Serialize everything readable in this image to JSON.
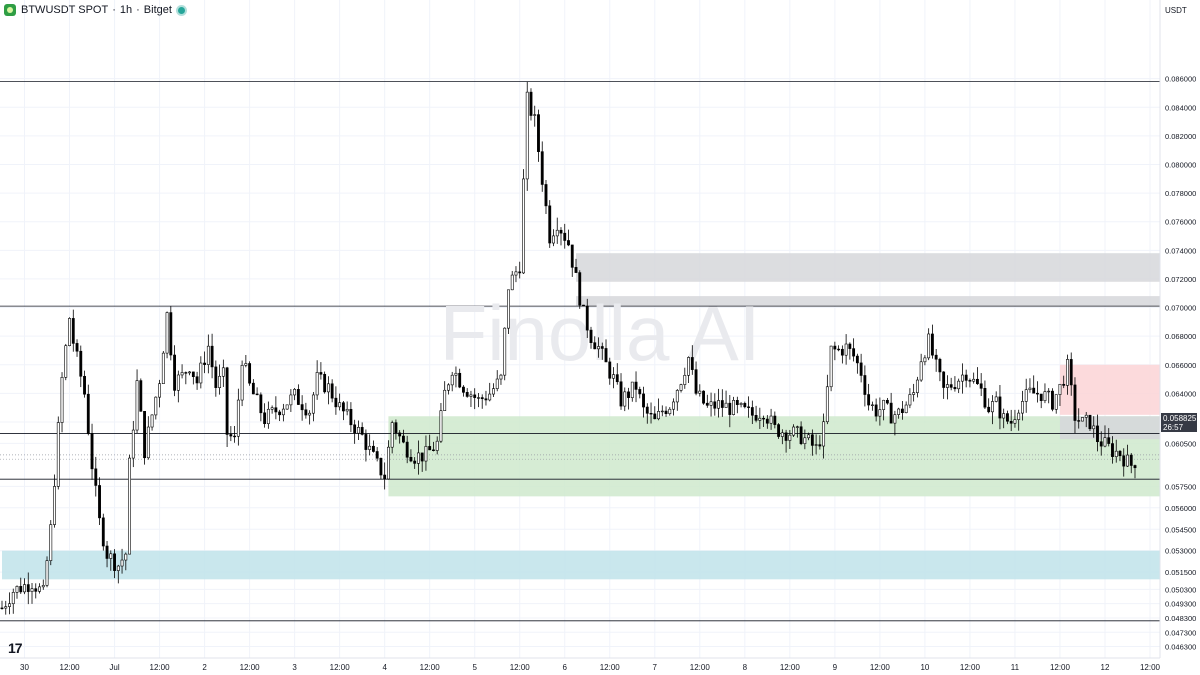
{
  "header": {
    "symbol": "BTWUSDT SPOT",
    "interval": "1h",
    "exchange": "Bitget",
    "separator": "·"
  },
  "currency_label": "USDT",
  "watermark": "Finolla AI",
  "logo_text": "17",
  "colors": {
    "up": "#ffffff",
    "down": "#000000",
    "wick": "#000000",
    "demand_zone": "#cfe9cc",
    "supply_zone": "#fbd4d6",
    "grey_zone": "#d6d7da",
    "blue_zone": "#bfe3ea",
    "grid": "#f0f3fa"
  },
  "last_price": {
    "value": "0.058825",
    "countdown": "26:57"
  },
  "chart_data": {
    "type": "candlestick",
    "title": "",
    "xlabel": "",
    "ylabel": "",
    "ylim": [
      0.0455,
      0.0915
    ],
    "xlim_bars": [
      0,
      306
    ],
    "y_ticks": [
      "0.086000",
      "0.084000",
      "0.082000",
      "0.080000",
      "0.078000",
      "0.076000",
      "0.074000",
      "0.072000",
      "0.070000",
      "0.068000",
      "0.066000",
      "0.064000",
      "0.062000",
      "0.060500",
      "0.057500",
      "0.056000",
      "0.054500",
      "0.053000",
      "0.051500",
      "0.050300",
      "0.049300",
      "0.048300",
      "0.047300",
      "0.046300"
    ],
    "x_ticks": [
      {
        "label": "30",
        "bar": 6
      },
      {
        "label": "12:00",
        "bar": 18
      },
      {
        "label": "Jul",
        "bar": 30
      },
      {
        "label": "12:00",
        "bar": 42
      },
      {
        "label": "2",
        "bar": 54
      },
      {
        "label": "12:00",
        "bar": 66
      },
      {
        "label": "3",
        "bar": 78
      },
      {
        "label": "12:00",
        "bar": 90
      },
      {
        "label": "4",
        "bar": 102
      },
      {
        "label": "12:00",
        "bar": 114
      },
      {
        "label": "5",
        "bar": 126
      },
      {
        "label": "12:00",
        "bar": 138
      },
      {
        "label": "6",
        "bar": 150
      },
      {
        "label": "12:00",
        "bar": 162
      },
      {
        "label": "7",
        "bar": 174
      },
      {
        "label": "12:00",
        "bar": 186
      },
      {
        "label": "8",
        "bar": 198
      },
      {
        "label": "12:00",
        "bar": 210
      },
      {
        "label": "9",
        "bar": 222
      },
      {
        "label": "12:00",
        "bar": 234
      },
      {
        "label": "10",
        "bar": 246
      },
      {
        "label": "12:00",
        "bar": 258
      },
      {
        "label": "11",
        "bar": 270
      },
      {
        "label": "12:00",
        "bar": 282
      },
      {
        "label": "12",
        "bar": 294
      },
      {
        "label": "12:00",
        "bar": 306
      }
    ],
    "horizontal_lines": [
      0.0858,
      0.0701,
      0.0612,
      0.058,
      0.0481
    ],
    "dotted_lines": [
      0.0597,
      0.0594
    ],
    "zones": [
      {
        "kind": "grey",
        "from_bar": 153,
        "to_bar": 310,
        "low": 0.0718,
        "high": 0.0738
      },
      {
        "kind": "grey",
        "from_bar": 153,
        "to_bar": 310,
        "low": 0.0701,
        "high": 0.0708
      },
      {
        "kind": "demand",
        "from_bar": 103,
        "to_bar": 310,
        "low": 0.0568,
        "high": 0.0624
      },
      {
        "kind": "supply",
        "from_bar": 282,
        "to_bar": 310,
        "low": 0.0625,
        "high": 0.066
      },
      {
        "kind": "grey",
        "from_bar": 282,
        "to_bar": 310,
        "low": 0.0608,
        "high": 0.0624
      },
      {
        "kind": "blue",
        "from_bar": 0,
        "to_bar": 310,
        "low": 0.051,
        "high": 0.053
      }
    ],
    "path_points": [
      [
        0,
        0.049
      ],
      [
        3,
        0.0502
      ],
      [
        8,
        0.0508
      ],
      [
        11,
        0.05
      ],
      [
        13,
        0.0545
      ],
      [
        16,
        0.065
      ],
      [
        18,
        0.0693
      ],
      [
        19,
        0.0676
      ],
      [
        22,
        0.064
      ],
      [
        24,
        0.059
      ],
      [
        26,
        0.055
      ],
      [
        28,
        0.0528
      ],
      [
        30,
        0.0522
      ],
      [
        31,
        0.052
      ],
      [
        33,
        0.0528
      ],
      [
        34,
        0.059
      ],
      [
        36,
        0.0647
      ],
      [
        38,
        0.06
      ],
      [
        40,
        0.0625
      ],
      [
        42,
        0.065
      ],
      [
        44,
        0.0695
      ],
      [
        46,
        0.0648
      ],
      [
        48,
        0.0652
      ],
      [
        50,
        0.066
      ],
      [
        52,
        0.0648
      ],
      [
        55,
        0.0673
      ],
      [
        57,
        0.0645
      ],
      [
        59,
        0.0652
      ],
      [
        60,
        0.0612
      ],
      [
        62,
        0.0607
      ],
      [
        64,
        0.0665
      ],
      [
        66,
        0.0645
      ],
      [
        70,
        0.0622
      ],
      [
        74,
        0.063
      ],
      [
        78,
        0.0638
      ],
      [
        82,
        0.0628
      ],
      [
        84,
        0.065
      ],
      [
        87,
        0.0644
      ],
      [
        90,
        0.063
      ],
      [
        93,
        0.062
      ],
      [
        96,
        0.061
      ],
      [
        98,
        0.06
      ],
      [
        100,
        0.059
      ],
      [
        102,
        0.0582
      ],
      [
        104,
        0.062
      ],
      [
        107,
        0.0604
      ],
      [
        110,
        0.0596
      ],
      [
        113,
        0.0597
      ],
      [
        116,
        0.0605
      ],
      [
        118,
        0.064
      ],
      [
        120,
        0.0658
      ],
      [
        123,
        0.0645
      ],
      [
        127,
        0.0635
      ],
      [
        130,
        0.064
      ],
      [
        133,
        0.065
      ],
      [
        135,
        0.0715
      ],
      [
        138,
        0.073
      ],
      [
        140,
        0.0845
      ],
      [
        142,
        0.083
      ],
      [
        144,
        0.079
      ],
      [
        146,
        0.075
      ],
      [
        148,
        0.076
      ],
      [
        151,
        0.0745
      ],
      [
        153,
        0.072
      ],
      [
        155,
        0.0695
      ],
      [
        157,
        0.068
      ],
      [
        159,
        0.0672
      ],
      [
        161,
        0.066
      ],
      [
        163,
        0.065
      ],
      [
        165,
        0.0635
      ],
      [
        167,
        0.064
      ],
      [
        169,
        0.0645
      ],
      [
        171,
        0.0628
      ],
      [
        174,
        0.062
      ],
      [
        176,
        0.0628
      ],
      [
        178,
        0.0632
      ],
      [
        181,
        0.065
      ],
      [
        183,
        0.0665
      ],
      [
        185,
        0.064
      ],
      [
        188,
        0.063
      ],
      [
        191,
        0.0632
      ],
      [
        194,
        0.063
      ],
      [
        197,
        0.0628
      ],
      [
        200,
        0.0625
      ],
      [
        203,
        0.0628
      ],
      [
        206,
        0.0615
      ],
      [
        209,
        0.0613
      ],
      [
        211,
        0.0612
      ],
      [
        213,
        0.061
      ],
      [
        215,
        0.0606
      ],
      [
        217,
        0.0601
      ],
      [
        219,
        0.0615
      ],
      [
        221,
        0.067
      ],
      [
        223,
        0.067
      ],
      [
        225,
        0.0672
      ],
      [
        227,
        0.0666
      ],
      [
        229,
        0.0655
      ],
      [
        231,
        0.0633
      ],
      [
        233,
        0.0628
      ],
      [
        235,
        0.063
      ],
      [
        237,
        0.0625
      ],
      [
        239,
        0.0626
      ],
      [
        241,
        0.0632
      ],
      [
        243,
        0.064
      ],
      [
        245,
        0.0665
      ],
      [
        247,
        0.0676
      ],
      [
        249,
        0.0658
      ],
      [
        251,
        0.0642
      ],
      [
        254,
        0.0648
      ],
      [
        257,
        0.0655
      ],
      [
        259,
        0.0648
      ],
      [
        261,
        0.0642
      ],
      [
        263,
        0.063
      ],
      [
        265,
        0.0633
      ],
      [
        267,
        0.0622
      ],
      [
        269,
        0.062
      ],
      [
        271,
        0.0632
      ],
      [
        274,
        0.064
      ],
      [
        277,
        0.064
      ],
      [
        280,
        0.0634
      ],
      [
        282,
        0.0644
      ],
      [
        284,
        0.0658
      ],
      [
        286,
        0.0624
      ],
      [
        288,
        0.0619
      ],
      [
        290,
        0.062
      ],
      [
        292,
        0.0608
      ],
      [
        294,
        0.0604
      ],
      [
        296,
        0.06
      ],
      [
        298,
        0.0598
      ],
      [
        300,
        0.0592
      ],
      [
        302,
        0.0588
      ]
    ]
  }
}
